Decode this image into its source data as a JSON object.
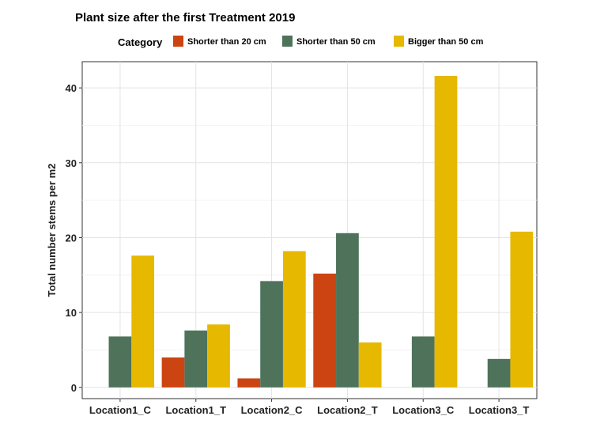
{
  "chart_data": {
    "type": "bar",
    "title": "Plant size after the first Treatment 2019",
    "xlabel": "",
    "ylabel": "Total number stems per m2",
    "legend_title": "Category",
    "legend_position": "top",
    "categories": [
      "Location1_C",
      "Location1_T",
      "Location2_C",
      "Location2_T",
      "Location3_C",
      "Location3_T"
    ],
    "series": [
      {
        "name": "Shorter than 20 cm",
        "color": "#CC4411",
        "values": [
          0,
          4.0,
          1.2,
          15.2,
          0,
          0
        ]
      },
      {
        "name": "Shorter than 50 cm",
        "color": "#4E735A",
        "values": [
          6.8,
          7.6,
          14.2,
          20.6,
          6.8,
          3.8
        ]
      },
      {
        "name": "Bigger than 50 cm",
        "color": "#E6B800",
        "values": [
          17.6,
          8.4,
          18.2,
          6.0,
          41.6,
          20.8
        ]
      }
    ],
    "ylim": [
      -1.5,
      43.5
    ],
    "yticks": [
      0,
      10,
      20,
      30,
      40
    ],
    "grid": true
  }
}
